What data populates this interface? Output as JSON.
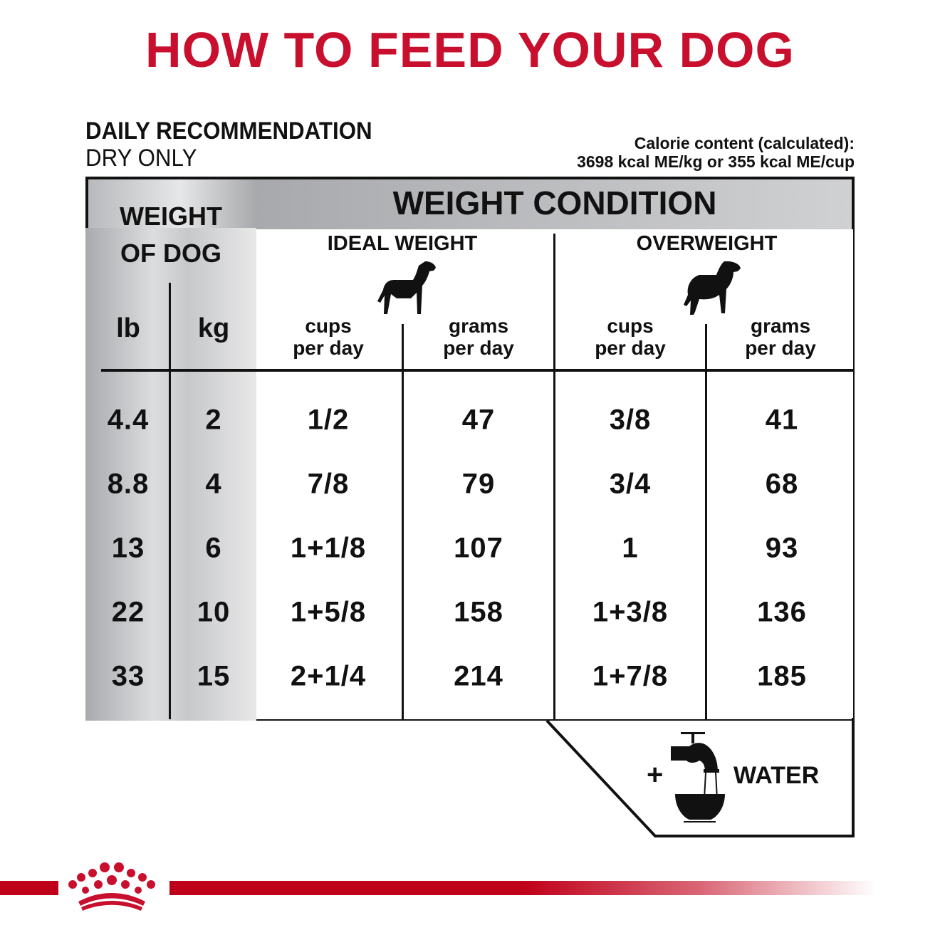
{
  "title": "HOW TO FEED YOUR DOG",
  "recommendation": {
    "line1": "DAILY RECOMMENDATION",
    "line2": "DRY ONLY"
  },
  "calorie": {
    "line1": "Calorie content (calculated):",
    "line2": "3698 kcal ME/kg or 355 kcal ME/cup"
  },
  "table": {
    "weight_of_dog_1": "WEIGHT",
    "weight_of_dog_2": "OF DOG",
    "weight_condition": "WEIGHT CONDITION",
    "ideal": "IDEAL WEIGHT",
    "overweight": "OVERWEIGHT",
    "lb": "lb",
    "kg": "kg",
    "cups_1": "cups",
    "grams_1": "grams",
    "per_day": "per day",
    "rows": [
      {
        "lb": "4.4",
        "kg": "2",
        "ideal_cups": "1/2",
        "ideal_grams": "47",
        "over_cups": "3/8",
        "over_grams": "41"
      },
      {
        "lb": "8.8",
        "kg": "4",
        "ideal_cups": "7/8",
        "ideal_grams": "79",
        "over_cups": "3/4",
        "over_grams": "68"
      },
      {
        "lb": "13",
        "kg": "6",
        "ideal_cups": "1+1/8",
        "ideal_grams": "107",
        "over_cups": "1",
        "over_grams": "93"
      },
      {
        "lb": "22",
        "kg": "10",
        "ideal_cups": "1+5/8",
        "ideal_grams": "158",
        "over_cups": "1+3/8",
        "over_grams": "136"
      },
      {
        "lb": "33",
        "kg": "15",
        "ideal_cups": "2+1/4",
        "ideal_grams": "214",
        "over_cups": "1+7/8",
        "over_grams": "185"
      }
    ]
  },
  "water": {
    "plus": "+",
    "label": "WATER",
    "icon": "faucet-bowl-icon"
  },
  "brand_color": "#c8102e",
  "logo": "royal-canin-crown-logo"
}
